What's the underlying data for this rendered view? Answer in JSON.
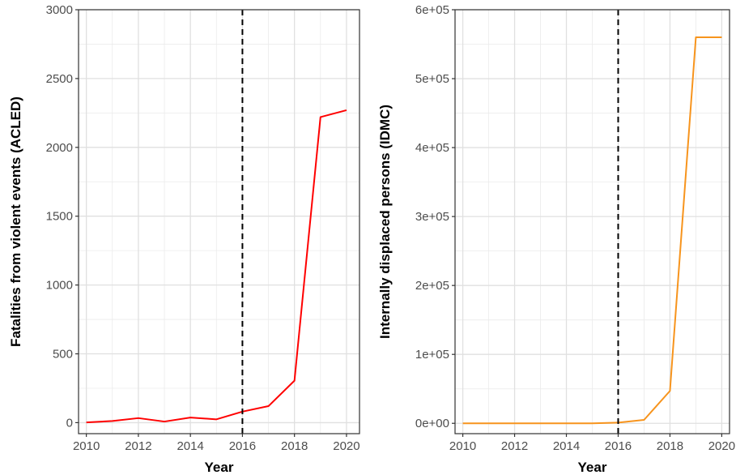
{
  "chart_data": [
    {
      "type": "line",
      "xlabel": "Year",
      "ylabel": "Fatalities from violent events (ACLED)",
      "xlim": [
        2009.7,
        2020.5
      ],
      "ylim": [
        -80,
        3000
      ],
      "x_ticks": [
        2010,
        2012,
        2014,
        2016,
        2018,
        2020
      ],
      "x_tick_labels": [
        "2010",
        "2012",
        "2014",
        "2016",
        "2018",
        "2020"
      ],
      "y_ticks": [
        0,
        500,
        1000,
        1500,
        2000,
        2500,
        3000
      ],
      "y_tick_labels": [
        "0",
        "500",
        "1000",
        "1500",
        "2000",
        "2500",
        "3000"
      ],
      "grid": true,
      "vline": 2016,
      "series": [
        {
          "color": "#ff0000",
          "x": [
            2010,
            2011,
            2012,
            2013,
            2014,
            2015,
            2016,
            2017,
            2018,
            2019,
            2020
          ],
          "values": [
            2,
            12,
            33,
            8,
            37,
            24,
            80,
            120,
            305,
            2220,
            2270
          ]
        }
      ]
    },
    {
      "type": "line",
      "xlabel": "Year",
      "ylabel": "Internally displaced persons (IDMC)",
      "xlim": [
        2009.7,
        2020.3
      ],
      "ylim": [
        -15000,
        600000
      ],
      "x_ticks": [
        2010,
        2012,
        2014,
        2016,
        2018,
        2020
      ],
      "x_tick_labels": [
        "2010",
        "2012",
        "2014",
        "2016",
        "2018",
        "2020"
      ],
      "y_ticks": [
        0,
        100000,
        200000,
        300000,
        400000,
        500000,
        600000
      ],
      "y_tick_labels": [
        "0e+00",
        "1e+05",
        "2e+05",
        "3e+05",
        "4e+05",
        "5e+05",
        "6e+05"
      ],
      "grid": true,
      "vline": 2016,
      "series": [
        {
          "color": "#f7941d",
          "x": [
            2010,
            2011,
            2012,
            2013,
            2014,
            2015,
            2016,
            2017,
            2018,
            2019,
            2020
          ],
          "values": [
            0,
            0,
            0,
            0,
            0,
            0,
            1000,
            5000,
            47000,
            560000,
            560000
          ]
        }
      ]
    }
  ]
}
